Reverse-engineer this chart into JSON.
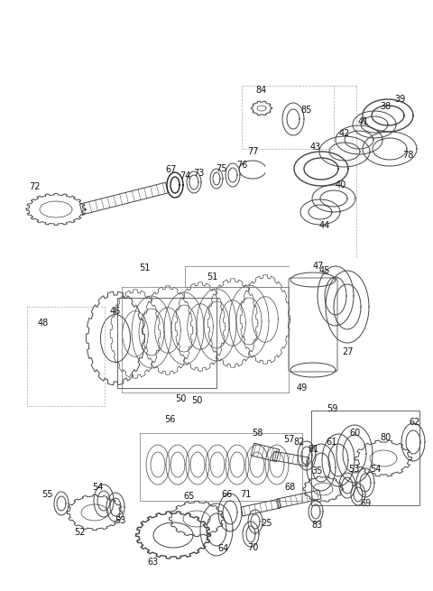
{
  "bg_color": "#ffffff",
  "line_color": "#444444",
  "label_color": "#111111",
  "fig_w": 4.8,
  "fig_h": 6.55,
  "dpi": 100
}
